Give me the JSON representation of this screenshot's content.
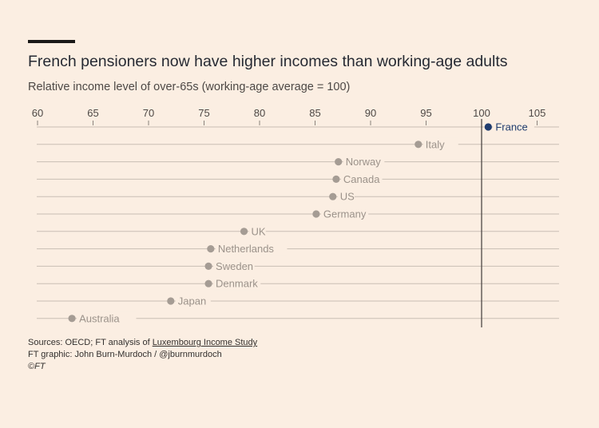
{
  "header": {
    "title": "French pensioners now have higher incomes than working-age adults",
    "subtitle": "Relative income level of over-65s (working-age average = 100)"
  },
  "footer": {
    "sources_prefix": "Sources: OECD; FT analysis of ",
    "sources_link": "Luxembourg Income Study",
    "graphic_credit": "FT graphic: John Burn-Murdoch / @jburnmurdoch",
    "copyright": "©FT"
  },
  "colors": {
    "background": "#fbeee2",
    "dot_default": "#a59c94",
    "dot_highlight": "#1f3c6e",
    "gridline": "#c9beb4",
    "reference_line": "#4d4845"
  },
  "chart_data": {
    "type": "scatter",
    "orientation": "horizontal-dot",
    "x_ticks": [
      60,
      65,
      70,
      75,
      80,
      85,
      90,
      95,
      100,
      105
    ],
    "xlim": [
      60,
      107
    ],
    "reference_line": 100,
    "highlight": "France",
    "categories": [
      "France",
      "Italy",
      "Norway",
      "Canada",
      "US",
      "Germany",
      "UK",
      "Netherlands",
      "Sweden",
      "Denmark",
      "Japan",
      "Australia"
    ],
    "values": [
      100.6,
      94.3,
      87.1,
      86.9,
      86.6,
      85.1,
      78.6,
      75.6,
      75.4,
      75.4,
      72.0,
      63.1
    ]
  }
}
